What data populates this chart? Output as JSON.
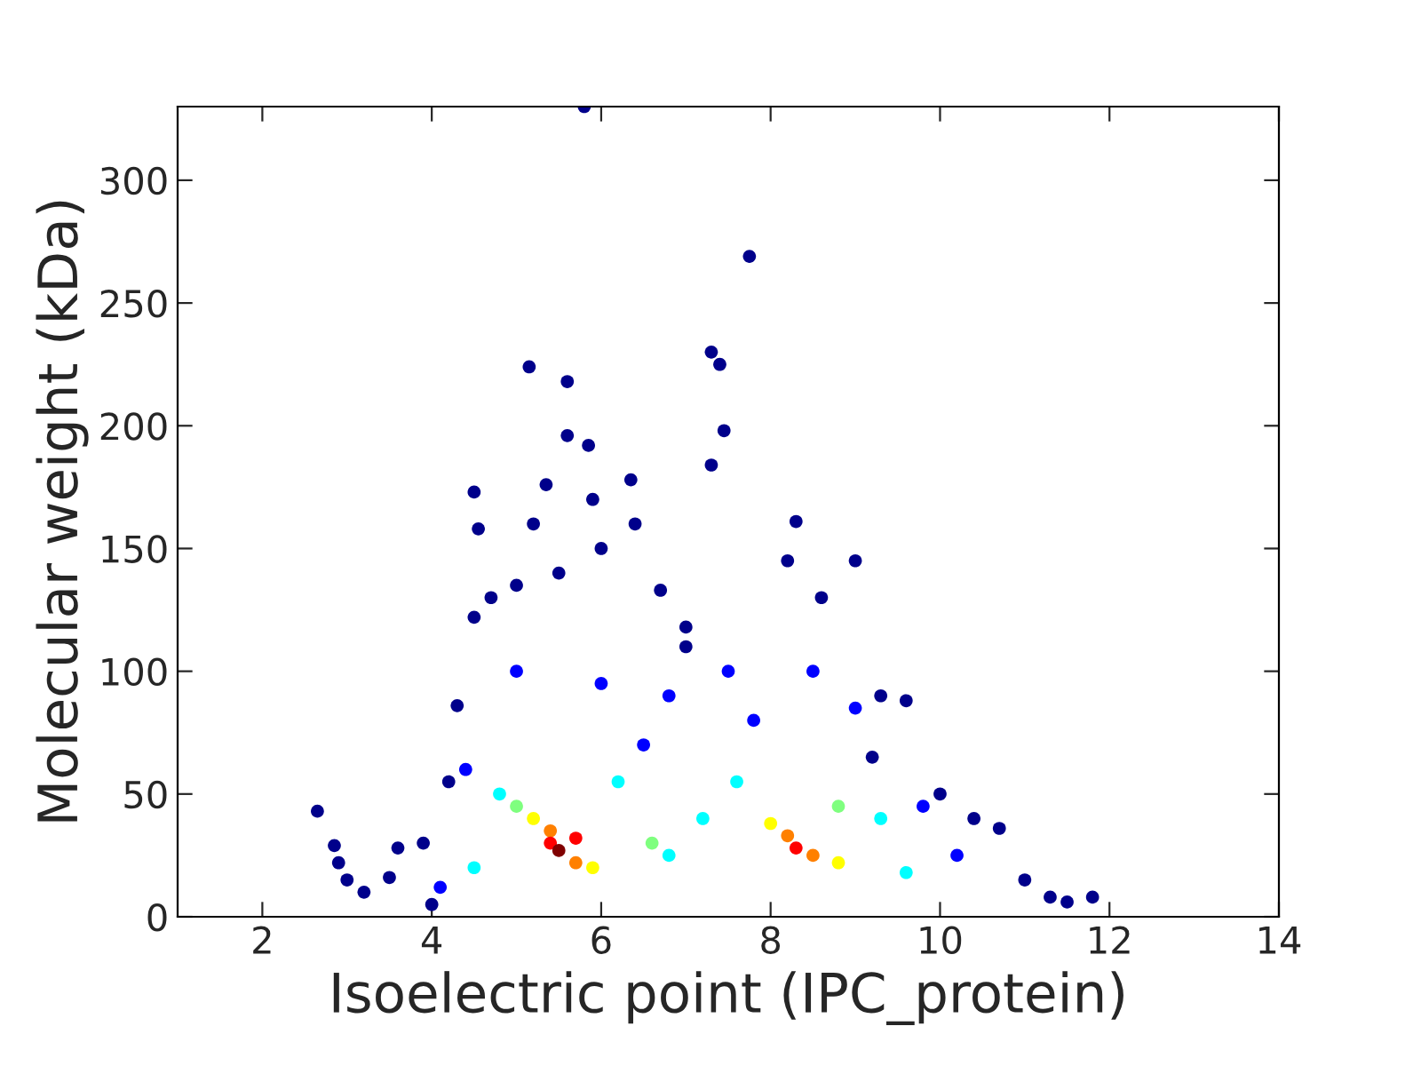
{
  "chart_data": {
    "type": "scatter",
    "xlabel": "Isoelectric point (IPC_protein)",
    "ylabel": "Molecular weight (kDa)",
    "xlim": [
      1,
      14
    ],
    "xticks": [
      2,
      4,
      6,
      8,
      10,
      12,
      14
    ],
    "ylim": [
      0,
      330
    ],
    "yticks": [
      0,
      50,
      100,
      150,
      200,
      250,
      300
    ],
    "grid": false,
    "marker": "circle",
    "series": [
      {
        "x": [
          5.8,
          7.75,
          7.3,
          7.4,
          5.15,
          5.6,
          7.45,
          5.6,
          5.85,
          7.3,
          6.35,
          4.5,
          5.35,
          5.9,
          4.55,
          6.4,
          8.3,
          5.2,
          6.0,
          9.0,
          8.2,
          6.7,
          4.3,
          2.65,
          2.85,
          2.9,
          3.0,
          3.2,
          3.5,
          3.6,
          10.7,
          11.0,
          11.3,
          11.5,
          11.8,
          10.4,
          9.6,
          9.3,
          4.2,
          4.5,
          4.7,
          5.0,
          5.5,
          7.0,
          8.6,
          7.0,
          9.2,
          10.0,
          3.9,
          4.0,
          5.0,
          6.0,
          6.8,
          7.5,
          8.5,
          9.0,
          4.4,
          9.8,
          10.2,
          4.1,
          6.5,
          7.8,
          4.8,
          6.2,
          7.2,
          9.3,
          7.6,
          4.5,
          9.6,
          6.8,
          5.0,
          8.8,
          6.6,
          5.2,
          8.0,
          5.9,
          8.8,
          5.4,
          8.2,
          5.7,
          8.5,
          5.4,
          5.7,
          8.3,
          5.5
        ],
        "values": [
          330,
          269,
          230,
          225,
          224,
          218,
          198,
          196,
          192,
          184,
          178,
          173,
          176,
          170,
          158,
          160,
          161,
          160,
          150,
          145,
          145,
          133,
          86,
          43,
          29,
          22,
          15,
          10,
          16,
          28,
          36,
          15,
          8,
          6,
          8,
          40,
          88,
          90,
          55,
          122,
          130,
          135,
          140,
          118,
          130,
          110,
          65,
          50,
          30,
          5,
          100,
          95,
          90,
          100,
          100,
          85,
          60,
          45,
          25,
          12,
          70,
          80,
          50,
          55,
          40,
          40,
          55,
          20,
          18,
          25,
          45,
          45,
          30,
          40,
          38,
          20,
          22,
          35,
          33,
          22,
          25,
          30,
          32,
          28,
          27
        ],
        "colors": [
          "#00008b",
          "#00008b",
          "#00008b",
          "#00008b",
          "#00008b",
          "#00008b",
          "#00008b",
          "#00008b",
          "#00008b",
          "#00008b",
          "#00008b",
          "#00008b",
          "#00008b",
          "#00008b",
          "#00008b",
          "#00008b",
          "#00008b",
          "#00008b",
          "#00008b",
          "#00008b",
          "#00008b",
          "#00008b",
          "#00008b",
          "#00008b",
          "#00008b",
          "#00008b",
          "#00008b",
          "#00008b",
          "#00008b",
          "#00008b",
          "#00008b",
          "#00008b",
          "#00008b",
          "#00008b",
          "#00008b",
          "#00008b",
          "#00008b",
          "#00008b",
          "#00008b",
          "#00008b",
          "#00008b",
          "#00008b",
          "#00008b",
          "#00008b",
          "#00008b",
          "#00008b",
          "#00008b",
          "#00008b",
          "#00008b",
          "#00008b",
          "#0000ff",
          "#0000ff",
          "#0000ff",
          "#0000ff",
          "#0000ff",
          "#0000ff",
          "#0000ff",
          "#0000ff",
          "#0000ff",
          "#0000ff",
          "#0000ff",
          "#0000ff",
          "#00ffff",
          "#00ffff",
          "#00ffff",
          "#00ffff",
          "#00ffff",
          "#00ffff",
          "#00ffff",
          "#00ffff",
          "#7fff7f",
          "#7fff7f",
          "#7fff7f",
          "#ffff00",
          "#ffff00",
          "#ffff00",
          "#ffff00",
          "#ff8000",
          "#ff8000",
          "#ff8000",
          "#ff8000",
          "#ff0000",
          "#ff0000",
          "#ff0000",
          "#800000"
        ]
      }
    ]
  }
}
